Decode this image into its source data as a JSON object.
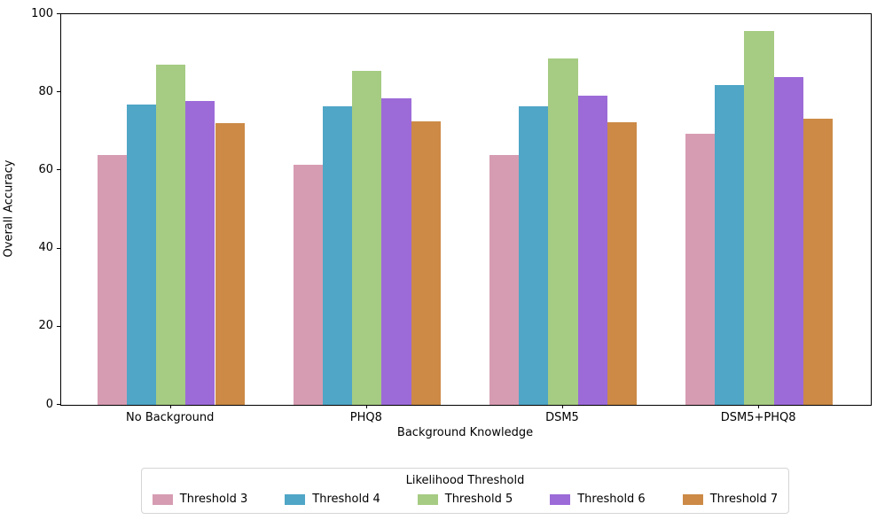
{
  "chart_data": {
    "type": "bar",
    "title": "",
    "xlabel": "Background Knowledge",
    "ylabel": "Overall Accuracy",
    "categories": [
      "No Background",
      "PHQ8",
      "DSM5",
      "DSM5+PHQ8"
    ],
    "series": [
      {
        "name": "Threshold 3",
        "color": "#d69cb2",
        "values": [
          64.0,
          61.5,
          64.0,
          69.4
        ]
      },
      {
        "name": "Threshold 4",
        "color": "#4fa6c6",
        "values": [
          76.9,
          76.4,
          76.4,
          81.8
        ]
      },
      {
        "name": "Threshold 5",
        "color": "#a6cb83",
        "values": [
          87.1,
          85.5,
          88.7,
          95.7
        ]
      },
      {
        "name": "Threshold 6",
        "color": "#9c6bd8",
        "values": [
          77.7,
          78.5,
          79.2,
          83.9
        ]
      },
      {
        "name": "Threshold 7",
        "color": "#cc8a46",
        "values": [
          72.2,
          72.6,
          72.3,
          73.3
        ]
      }
    ],
    "legend": {
      "title": "Likelihood Threshold",
      "position": "below-chart",
      "entries": [
        "Threshold 3",
        "Threshold 4",
        "Threshold 5",
        "Threshold 6",
        "Threshold 7"
      ]
    },
    "ylim": [
      0,
      100
    ],
    "yticks": [
      0,
      20,
      40,
      60,
      80,
      100
    ],
    "grid": false,
    "background_color": "#ffffff",
    "spine_color": "#000000"
  }
}
